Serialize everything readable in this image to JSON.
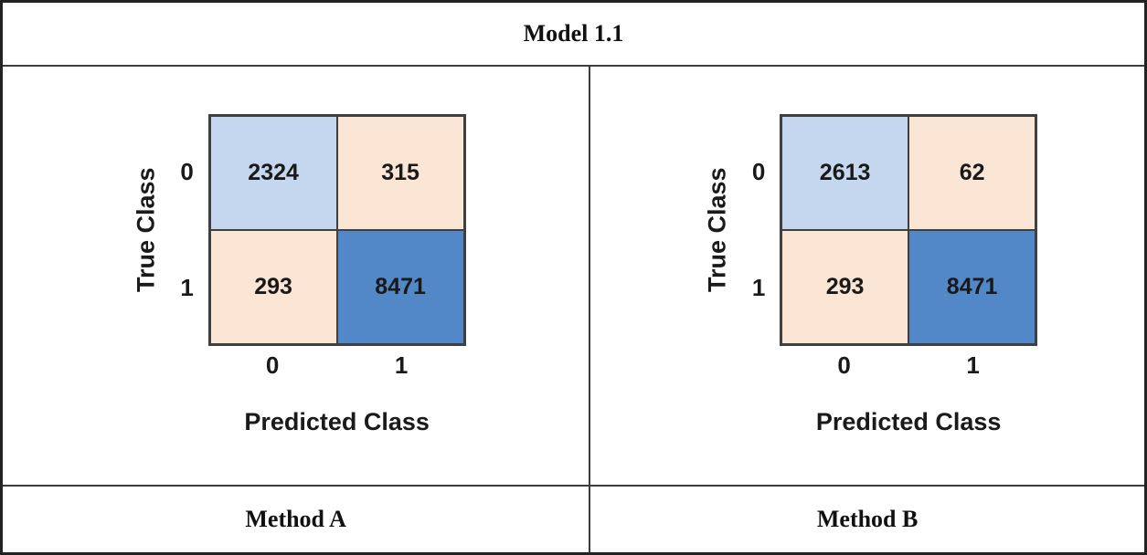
{
  "figure_title": "Model 1.1",
  "colors": {
    "cell_light_blue": "#c5d7ee",
    "cell_peach": "#fbe5d4",
    "cell_dark_blue": "#5288c7",
    "grid_line": "#3f3f3f",
    "frame_border": "#222222"
  },
  "panels": [
    {
      "method": "Method A",
      "ylabel": "True Class",
      "xlabel": "Predicted Class",
      "row_labels": [
        "0",
        "1"
      ],
      "col_labels": [
        "0",
        "1"
      ],
      "cells": [
        [
          "2324",
          "315"
        ],
        [
          "293",
          "8471"
        ]
      ]
    },
    {
      "method": "Method B",
      "ylabel": "True Class",
      "xlabel": "Predicted Class",
      "row_labels": [
        "0",
        "1"
      ],
      "col_labels": [
        "0",
        "1"
      ],
      "cells": [
        [
          "2613",
          "62"
        ],
        [
          "293",
          "8471"
        ]
      ]
    }
  ],
  "chart_data": [
    {
      "type": "heatmap",
      "title": "Model 1.1 - Method A",
      "xlabel": "Predicted Class",
      "ylabel": "True Class",
      "x_ticks": [
        "0",
        "1"
      ],
      "y_ticks": [
        "0",
        "1"
      ],
      "values": [
        [
          2324,
          315
        ],
        [
          293,
          8471
        ]
      ],
      "cell_colors": [
        [
          "#c5d7ee",
          "#fbe5d4"
        ],
        [
          "#fbe5d4",
          "#5288c7"
        ]
      ],
      "legend": "none",
      "grid": "on"
    },
    {
      "type": "heatmap",
      "title": "Model 1.1 - Method B",
      "xlabel": "Predicted Class",
      "ylabel": "True Class",
      "x_ticks": [
        "0",
        "1"
      ],
      "y_ticks": [
        "0",
        "1"
      ],
      "values": [
        [
          2613,
          62
        ],
        [
          293,
          8471
        ]
      ],
      "cell_colors": [
        [
          "#c5d7ee",
          "#fbe5d4"
        ],
        [
          "#fbe5d4",
          "#5288c7"
        ]
      ],
      "legend": "none",
      "grid": "on"
    }
  ]
}
